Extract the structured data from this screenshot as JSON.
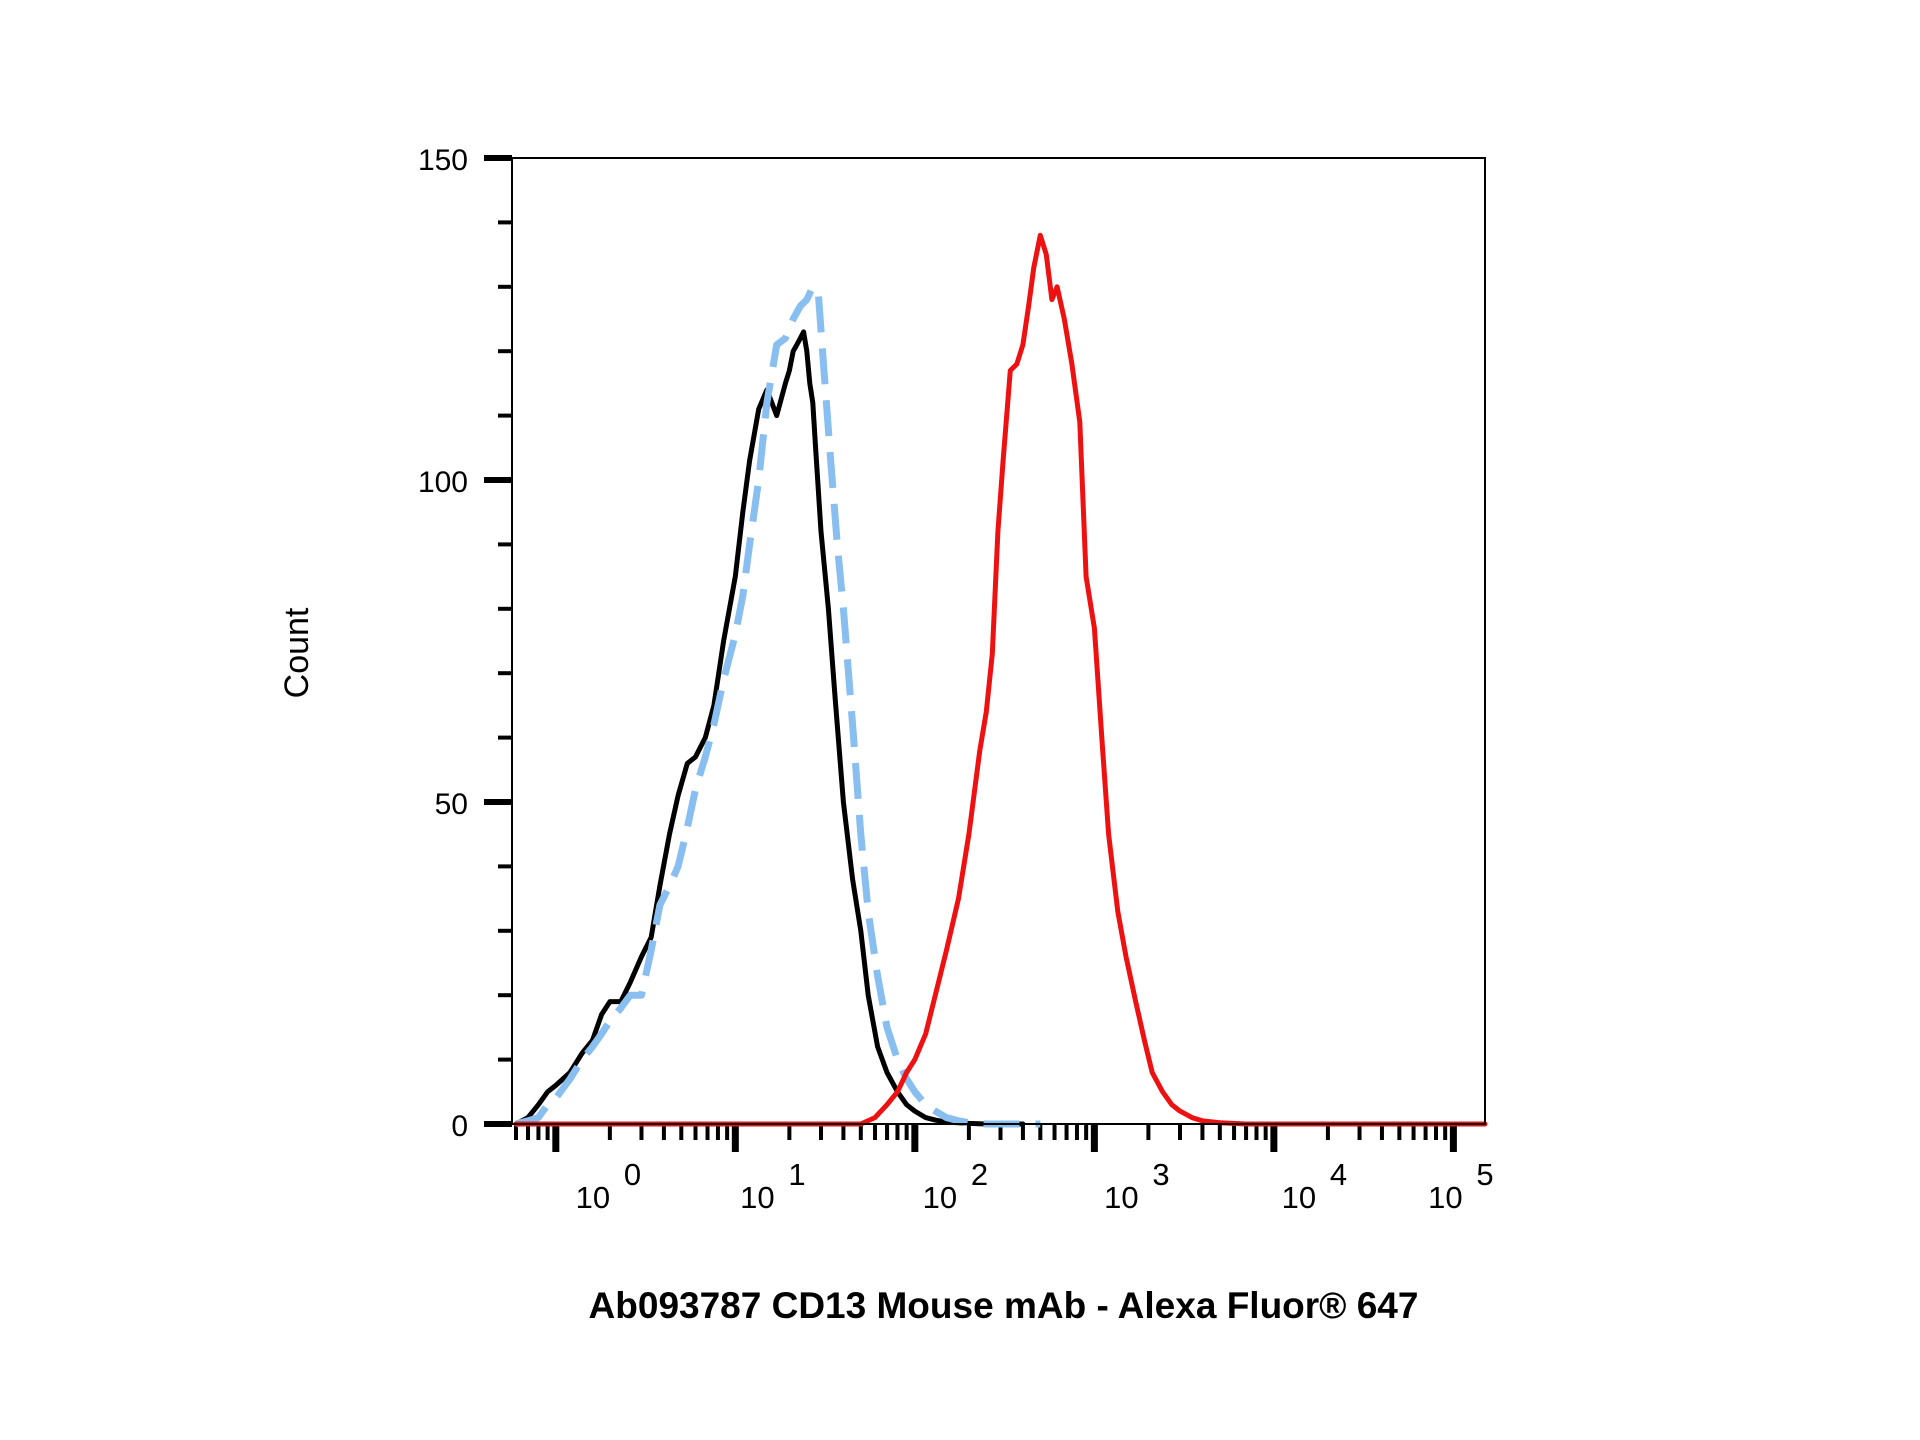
{
  "chart_data": {
    "type": "line",
    "title": "",
    "xlabel": "Ab093787 CD13 Mouse mAb - Alexa Fluor® 647",
    "ylabel": "Count",
    "x_scale": "log",
    "xlim": [
      0.57,
      150000
    ],
    "ylim": [
      0,
      150
    ],
    "yticks": [
      {
        "value": 0,
        "label": "0"
      },
      {
        "value": 50,
        "label": "50"
      },
      {
        "value": 100,
        "label": "100"
      },
      {
        "value": 150,
        "label": "150"
      }
    ],
    "xticks": [
      {
        "value": 1,
        "base": "10",
        "exp": "0"
      },
      {
        "value": 10,
        "base": "10",
        "exp": "1"
      },
      {
        "value": 100,
        "base": "10",
        "exp": "2"
      },
      {
        "value": 1000,
        "base": "10",
        "exp": "3"
      },
      {
        "value": 10000,
        "base": "10",
        "exp": "4"
      },
      {
        "value": 100000,
        "base": "10",
        "exp": "5"
      }
    ],
    "grid": false,
    "legend": "none",
    "series": [
      {
        "color": "#000000",
        "dash": "solid",
        "x": [
          0.6,
          0.7,
          0.8,
          0.9,
          1.0,
          1.2,
          1.4,
          1.6,
          1.8,
          2.0,
          2.3,
          2.6,
          3.0,
          3.4,
          3.8,
          4.3,
          4.8,
          5.4,
          6.0,
          6.8,
          7.6,
          8.6,
          10,
          11,
          12,
          13.5,
          15,
          17,
          19,
          20,
          21,
          22,
          23,
          24,
          25,
          26,
          27,
          28,
          30,
          33,
          36,
          40,
          45,
          50,
          55,
          62,
          70,
          80,
          90,
          100,
          115,
          130,
          150,
          175,
          200,
          250,
          300,
          400
        ],
        "y": [
          0,
          1,
          3,
          5,
          6,
          8,
          11,
          13,
          17,
          19,
          19,
          22,
          26,
          29,
          37,
          45,
          51,
          56,
          57,
          60,
          65,
          75,
          85,
          95,
          103,
          111,
          114,
          110,
          115,
          117,
          120,
          121,
          122,
          123,
          120,
          115,
          112,
          105,
          92,
          80,
          66,
          50,
          38,
          30,
          20,
          12,
          8,
          5,
          3,
          2,
          1,
          0.6,
          0.3,
          0.2,
          0.1,
          0,
          0,
          0
        ]
      },
      {
        "color": "#88bff0",
        "dash": "dashed",
        "x": [
          0.6,
          0.7,
          0.8,
          0.9,
          1.0,
          1.2,
          1.4,
          1.6,
          1.8,
          2.0,
          2.3,
          2.6,
          3.0,
          3.4,
          3.8,
          4.3,
          4.8,
          5.4,
          6.0,
          6.8,
          7.6,
          8.6,
          10,
          11,
          12,
          13.5,
          15,
          17,
          19,
          21,
          23,
          25,
          27,
          29,
          31,
          34,
          37,
          40,
          45,
          50,
          55,
          62,
          70,
          80,
          90,
          100,
          115,
          130,
          150,
          175,
          200,
          250,
          300,
          400,
          500
        ],
        "y": [
          0,
          0.5,
          1,
          3,
          4,
          7,
          10,
          12,
          14,
          16,
          18,
          20,
          20,
          27,
          34,
          37,
          40,
          46,
          52,
          57,
          62,
          69,
          76,
          82,
          90,
          100,
          112,
          121,
          122,
          125,
          127,
          128,
          130,
          129,
          118,
          103,
          90,
          80,
          62,
          45,
          33,
          23,
          15,
          10,
          7,
          5,
          3,
          2,
          1,
          0.5,
          0.2,
          0,
          0,
          0,
          0
        ]
      },
      {
        "color": "#ee1111",
        "dash": "solid",
        "x": [
          0.6,
          1,
          10,
          25,
          40,
          50,
          60,
          70,
          80,
          90,
          100,
          115,
          130,
          150,
          175,
          200,
          230,
          250,
          270,
          290,
          310,
          340,
          370,
          400,
          430,
          460,
          500,
          540,
          580,
          620,
          680,
          750,
          830,
          900,
          1000,
          1100,
          1200,
          1350,
          1500,
          1700,
          1900,
          2100,
          2400,
          2700,
          3000,
          3500,
          4000,
          5000,
          7000,
          100000,
          150000
        ],
        "y": [
          0,
          0,
          0,
          0,
          0,
          0,
          1,
          3,
          5,
          8,
          10,
          14,
          20,
          27,
          35,
          45,
          58,
          64,
          73,
          92,
          103,
          117,
          118,
          121,
          127,
          133,
          138,
          135,
          128,
          130,
          125,
          118,
          109,
          85,
          77,
          60,
          45,
          33,
          26,
          19,
          13,
          8,
          5,
          3,
          2,
          1,
          0.5,
          0.2,
          0,
          0,
          0
        ]
      }
    ]
  }
}
